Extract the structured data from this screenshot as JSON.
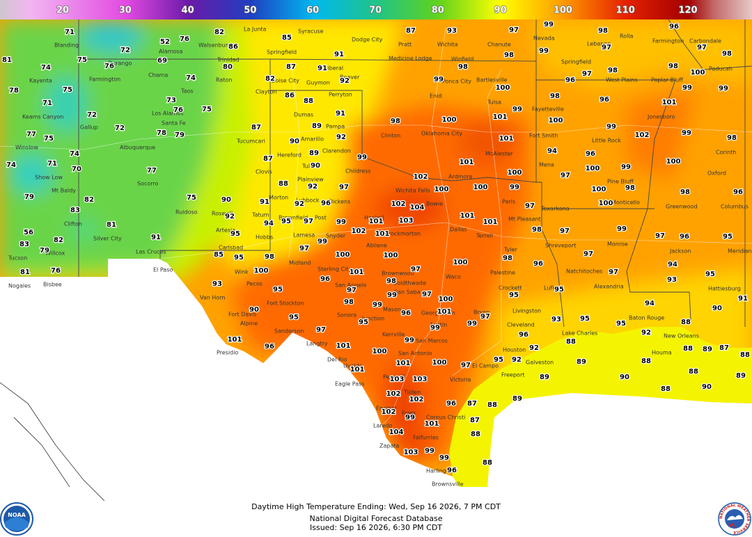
{
  "legend": {
    "ticks": [
      20,
      30,
      40,
      50,
      60,
      70,
      80,
      90,
      100,
      110,
      120
    ]
  },
  "caption": {
    "line1": "Daytime High Temperature Ending: Wed, Sep 16 2026, 7 PM CDT",
    "line2": "National Digital Forecast Database",
    "line3": "Issued: Sep 16 2026, 6:30 PM CDT"
  },
  "logos": {
    "noaa": "NOAA",
    "nws": "NATIONAL WEATHER SERVICE"
  },
  "temperatures": [
    71,
    52,
    76,
    82,
    72,
    69,
    75,
    81,
    74,
    76,
    80,
    74,
    78,
    75,
    71,
    73,
    76,
    75,
    72,
    72,
    77,
    75,
    78,
    79,
    74,
    74,
    71,
    70,
    77,
    79,
    82,
    75,
    83,
    81,
    56,
    83,
    82,
    79,
    91,
    81,
    76,
    86,
    85,
    82,
    87,
    91,
    91,
    92,
    86,
    88,
    91,
    89,
    92,
    87,
    90,
    89,
    90,
    87,
    99,
    88,
    92,
    97,
    91,
    90,
    92,
    96,
    92,
    94,
    95,
    97,
    99,
    95,
    99,
    102,
    101,
    101,
    103,
    102,
    104,
    102,
    100,
    98,
    100,
    101,
    99,
    100,
    101,
    101,
    100,
    99,
    100,
    101,
    101,
    96,
    100,
    97,
    100,
    101,
    97,
    100,
    98,
    85,
    95,
    93,
    95,
    98,
    100,
    98,
    96,
    95,
    99,
    97,
    100,
    101,
    97,
    98,
    99,
    96,
    90,
    95,
    95,
    97,
    99,
    99,
    99,
    97,
    96,
    101,
    96,
    101,
    100,
    101,
    100,
    97,
    101,
    103,
    103,
    102,
    102,
    99,
    96,
    87,
    88,
    102,
    104,
    101,
    103,
    99,
    99,
    96,
    88,
    88,
    87,
    89,
    89,
    99,
    98,
    97,
    93,
    87,
    97,
    99,
    98,
    98,
    99,
    96,
    97,
    98,
    96,
    97,
    98,
    98,
    100,
    99,
    99,
    101,
    98,
    96,
    100,
    99,
    102,
    99,
    98,
    94,
    96,
    100,
    99,
    100,
    97,
    100,
    100,
    98,
    98,
    96,
    97,
    99,
    97,
    96,
    95,
    98,
    97,
    97,
    97,
    94,
    95,
    93,
    95,
    94,
    93,
    95,
    95,
    92,
    88,
    90,
    91,
    89,
    87,
    88,
    88,
    92,
    92,
    95,
    89,
    88,
    90,
    88,
    88,
    90,
    89,
    88
  ],
  "places": [
    "Blanding",
    "Walsenburg",
    "Alamosa",
    "Trinidad",
    "Durango",
    "Chama",
    "Farmington",
    "Kayenta",
    "Raton",
    "Taos",
    "Keams Canyon",
    "Los Alamos",
    "Santa Fe",
    "Gallup",
    "Albuquerque",
    "Winslow",
    "Show Low",
    "Mt Baldy",
    "Socorro",
    "Ruidoso",
    "Clifton",
    "Silver City",
    "Willcox",
    "Tucson",
    "Las Cruces",
    "El Paso",
    "Nogales",
    "Bisbee",
    "Clayton",
    "Boise City",
    "Guymon",
    "Liberal",
    "Beaver",
    "Perryton",
    "Dumas",
    "Pampa",
    "Amarillo",
    "Tucumcari",
    "Clovis",
    "Hereford",
    "Tulia",
    "Clarendon",
    "Plainview",
    "Childress",
    "Morton",
    "Lubbock",
    "Dickens",
    "Roswell",
    "Tatum",
    "Brownfield",
    "Post",
    "Artesia",
    "Hobbs",
    "Lamesa",
    "Snyder",
    "Carlsbad",
    "Midland",
    "Sterling City",
    "Wink",
    "Pecos",
    "Van Horn",
    "Fort Stockton",
    "Fort Davis",
    "Alpine",
    "Sanderson",
    "Presidio",
    "Langtry",
    "Del Rio",
    "Eagle Pass",
    "Uvalde",
    "Encinal",
    "Laredo",
    "Zapata",
    "San Angelo",
    "Sonora",
    "Junction",
    "Kerrville",
    "San Antonio",
    "Pearsall",
    "Tilden",
    "Freer",
    "Falfurrias",
    "Corpus Christi",
    "Harlingen",
    "Brownsville",
    "Victoria",
    "Abilene",
    "Haskell",
    "Throckmorton",
    "Wichita Falls",
    "Bowie",
    "Brownwood",
    "Goldthwaite",
    "San Saba",
    "Mason",
    "Georgetown",
    "Austin",
    "San Marcos",
    "Waco",
    "Dallas",
    "Terrell",
    "Tyler",
    "Paris",
    "Mt Pleasant",
    "Palestine",
    "Crockett",
    "Lufkin",
    "Livingston",
    "Bryan",
    "Cleveland",
    "Houston",
    "Galveston",
    "Freeport",
    "El Campo",
    "Ardmore",
    "Oklahoma City",
    "Clinton",
    "Enid",
    "Ponca City",
    "Bartlesville",
    "Tulsa",
    "McAlester",
    "Mena",
    "Fort Smith",
    "Fayetteville",
    "Springfield",
    "Nevada",
    "Lebanon",
    "Rolla",
    "Farmington",
    "Carbondale",
    "Paducah",
    "Poplar Bluff",
    "West Plains",
    "Jonesboro",
    "Little Rock",
    "Pine Bluff",
    "Texarkana",
    "Monticello",
    "Shreveport",
    "Monroe",
    "Jackson",
    "Meridian",
    "Natchitoches",
    "Alexandria",
    "Lake Charles",
    "Baton Rouge",
    "New Orleans",
    "Houma",
    "Hattiesburg",
    "Greenwood",
    "Oxford",
    "Corinth",
    "Columbus",
    "Dodge City",
    "Pratt",
    "Wichita",
    "Medicine Lodge",
    "Winfield",
    "Springfield",
    "Syracuse",
    "La Junta",
    "Chanute"
  ]
}
